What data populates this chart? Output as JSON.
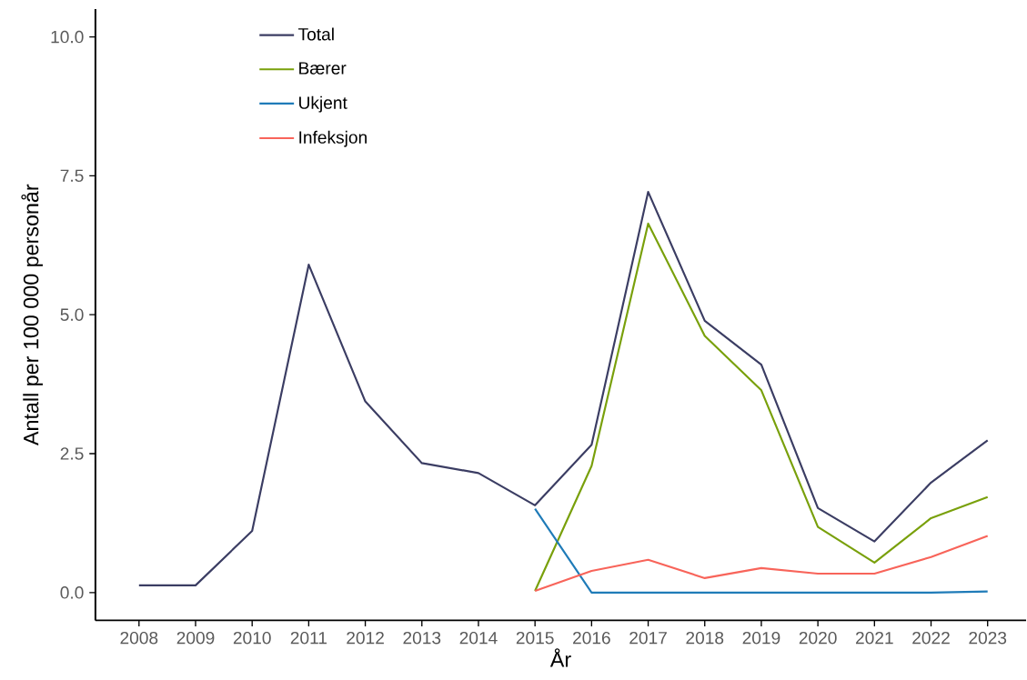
{
  "chart_data": {
    "type": "line",
    "xlabel": "År",
    "ylabel": "Antall per 100 000 personår",
    "categories": [
      "2008",
      "2009",
      "2010",
      "2011",
      "2012",
      "2013",
      "2014",
      "2015",
      "2016",
      "2017",
      "2018",
      "2019",
      "2020",
      "2021",
      "2022",
      "2023"
    ],
    "series": [
      {
        "name": "Total",
        "color": "#3b3d63",
        "values": [
          0.13,
          0.13,
          1.11,
          5.9,
          3.44,
          2.33,
          2.15,
          1.57,
          2.66,
          7.21,
          4.89,
          4.1,
          1.52,
          0.92,
          1.98,
          2.74
        ]
      },
      {
        "name": "Bærer",
        "color": "#79a00b",
        "values": [
          null,
          null,
          null,
          null,
          null,
          null,
          null,
          0.03,
          2.28,
          6.64,
          4.62,
          3.64,
          1.18,
          0.54,
          1.34,
          1.72
        ]
      },
      {
        "name": "Ukjent",
        "color": "#1f7bb8",
        "values": [
          null,
          null,
          null,
          null,
          null,
          null,
          null,
          1.51,
          0,
          0,
          0,
          0,
          0,
          0,
          0,
          0.02
        ]
      },
      {
        "name": "Infeksjon",
        "color": "#f8645a",
        "values": [
          null,
          null,
          null,
          null,
          null,
          null,
          null,
          0.03,
          0.39,
          0.59,
          0.26,
          0.44,
          0.34,
          0.34,
          0.64,
          1.02
        ]
      }
    ],
    "ylim": [
      -0.5,
      10.5
    ],
    "yticks": [
      {
        "value": 0,
        "label": "0.0"
      },
      {
        "value": 2.5,
        "label": "2.5"
      },
      {
        "value": 5,
        "label": "5.0"
      },
      {
        "value": 7.5,
        "label": "7.5"
      },
      {
        "value": 10,
        "label": "10.0"
      }
    ],
    "grid": false,
    "legend": "top left",
    "marker": "none",
    "line_style": "solid"
  }
}
